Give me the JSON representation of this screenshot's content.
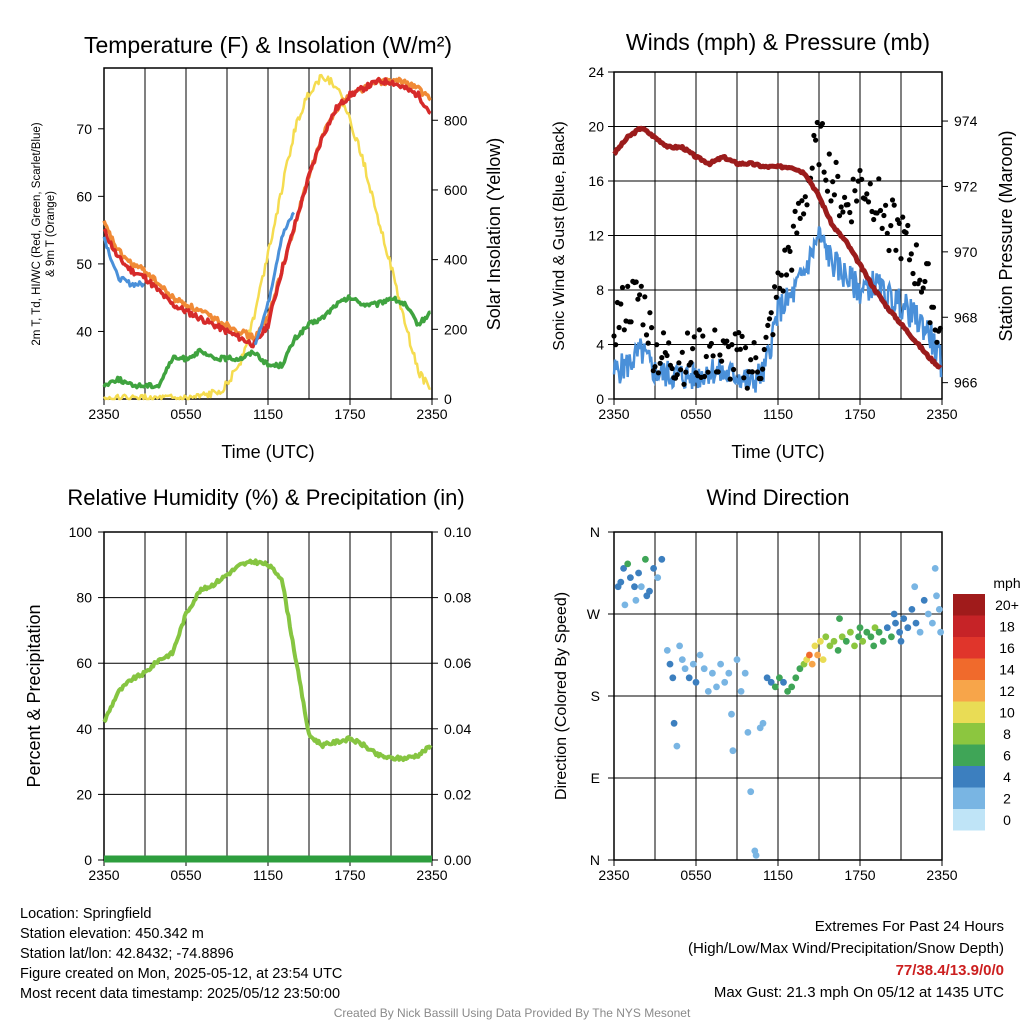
{
  "panels": {
    "temp": {
      "title": "Temperature (F) & Insolation (W/m²)",
      "ylabel_left": "2m T, Td, HI/WC (Red, Green, Scarlet/Blue) & 9m T (Orange)",
      "ylabel_right": "Solar Insolation (Yellow)",
      "xlabel": "Time (UTC)"
    },
    "wind": {
      "title": "Winds (mph) & Pressure (mb)",
      "ylabel_left": "Sonic Wind & Gust (Blue, Black)",
      "ylabel_right": "Station Pressure (Maroon)",
      "xlabel": "Time (UTC)"
    },
    "rh": {
      "title": "Relative Humidity (%) & Precipitation (in)",
      "ylabel_left": "Percent & Precipitation"
    },
    "dir": {
      "title": "Wind Direction",
      "ylabel_left": "Direction (Colored By Speed)"
    }
  },
  "x_tick_labels": [
    "2350",
    "0550",
    "1150",
    "1750",
    "2350"
  ],
  "dir_tick_labels": [
    "N",
    "W",
    "S",
    "E",
    "N"
  ],
  "legend": {
    "title": "mph",
    "labels": [
      "20+",
      "18",
      "16",
      "14",
      "12",
      "10",
      "8",
      "6",
      "4",
      "2",
      "0"
    ],
    "colors": [
      "#a01b1b",
      "#c62327",
      "#e0352b",
      "#f06a2c",
      "#f7a54a",
      "#e9dc55",
      "#8cc63f",
      "#3fa557",
      "#3c7fbf",
      "#79b5e3",
      "#bfe4f7"
    ]
  },
  "footer": {
    "location": "Location: Springfield",
    "elevation": "Station elevation: 450.342 m",
    "latlon": "Station lat/lon: 42.8432; -74.8896",
    "created": "Figure created on Mon, 2025-05-12, at 23:54 UTC",
    "recent": "Most recent data timestamp: 2025/05/12 23:50:00",
    "extremes_title": "Extremes For Past 24 Hours",
    "extremes_sub": "(High/Low/Max Wind/Precipitation/Snow Depth)",
    "extremes_values": "77/38.4/13.9/0/0",
    "max_gust": "Max Gust: 21.3 mph On 05/12 at 1435 UTC",
    "credit": "Created By Nick Bassill Using Data Provided By The NYS Mesonet"
  },
  "chart_data": [
    {
      "type": "line",
      "title": "Temperature (F) & Insolation (W/m²)",
      "xlabel": "Time (UTC)",
      "x_hours": [
        0,
        1,
        2,
        3,
        4,
        5,
        6,
        7,
        8,
        9,
        10,
        11,
        12,
        13,
        14,
        15,
        16,
        17,
        18,
        19,
        20,
        21,
        22,
        23,
        24
      ],
      "ylim_left": [
        30,
        79
      ],
      "yticks_left": [
        40,
        50,
        60,
        70
      ],
      "ylim_right": [
        0,
        950
      ],
      "yticks_right": [
        0,
        200,
        400,
        600,
        800
      ],
      "series": [
        {
          "axis": "left",
          "color": "#d62a2a",
          "values": [
            55,
            51,
            49,
            48,
            46,
            44,
            43,
            42,
            41,
            40,
            39,
            38,
            41,
            49,
            56,
            63,
            69,
            73,
            75,
            76,
            77,
            77,
            76,
            75,
            72
          ]
        },
        {
          "axis": "left",
          "color": "#f08a36",
          "values": [
            56,
            52,
            50,
            49,
            47,
            45,
            44,
            43,
            42,
            41,
            40,
            39,
            42,
            49,
            56,
            63,
            69,
            73,
            75,
            76,
            77,
            77,
            77,
            76,
            74
          ]
        },
        {
          "axis": "left",
          "color": "#3fa33f",
          "values": [
            32,
            33,
            32,
            32,
            32,
            36,
            36,
            37,
            36,
            36,
            36,
            37,
            35,
            35,
            39,
            41,
            42,
            44,
            45,
            44,
            44,
            45,
            44,
            41,
            43
          ]
        },
        {
          "axis": "left",
          "color": "#4a90d9",
          "values": [
            54,
            48,
            47,
            47,
            null,
            null,
            null,
            null,
            null,
            null,
            null,
            38,
            44,
            54,
            58,
            null,
            null,
            null,
            null,
            null,
            null,
            null,
            null,
            null,
            null
          ]
        },
        {
          "axis": "right",
          "color": "#f5dc50",
          "values": [
            0,
            0,
            0,
            0,
            0,
            0,
            0,
            5,
            15,
            40,
            110,
            240,
            420,
            600,
            780,
            880,
            930,
            900,
            800,
            680,
            530,
            380,
            220,
            80,
            20
          ]
        }
      ]
    },
    {
      "type": "line",
      "title": "Winds (mph) & Pressure (mb)",
      "xlabel": "Time (UTC)",
      "x_hours": [
        0,
        1,
        2,
        3,
        4,
        5,
        6,
        7,
        8,
        9,
        10,
        11,
        12,
        13,
        14,
        15,
        16,
        17,
        18,
        19,
        20,
        21,
        22,
        23,
        24
      ],
      "ylim_left": [
        0,
        24
      ],
      "yticks_left": [
        0,
        4,
        8,
        12,
        16,
        20,
        24
      ],
      "ylim_right": [
        965.5,
        975.5
      ],
      "yticks_right": [
        966,
        968,
        970,
        972,
        974
      ],
      "series": [
        {
          "axis": "right",
          "color": "#9b1c1c",
          "values": [
            973.0,
            973.5,
            973.8,
            973.5,
            973.2,
            973.2,
            972.9,
            972.7,
            972.9,
            972.7,
            972.7,
            972.6,
            972.6,
            972.6,
            972.4,
            971.7,
            970.8,
            970.3,
            969.6,
            968.9,
            968.3,
            967.8,
            967.3,
            966.8,
            966.4
          ]
        },
        {
          "axis": "left",
          "color": "#4a90d9",
          "values": [
            2.0,
            2.5,
            3.5,
            2.0,
            1.8,
            1.7,
            1.6,
            2.2,
            1.8,
            1.8,
            1.2,
            2.0,
            6.5,
            7.5,
            9.5,
            12.0,
            10.0,
            9.0,
            8.0,
            8.5,
            7.5,
            7.0,
            6.0,
            5.0,
            2.5
          ]
        },
        {
          "axis": "left",
          "color": "#000000",
          "markers": true,
          "values": [
            5.5,
            7.0,
            7.5,
            3.5,
            3.0,
            3.0,
            3.0,
            3.5,
            3.0,
            3.0,
            2.5,
            3.0,
            8.0,
            11.0,
            15.0,
            19.0,
            16.0,
            14.0,
            16.0,
            15.0,
            13.0,
            12.0,
            10.0,
            8.0,
            4.0
          ]
        }
      ]
    },
    {
      "type": "line",
      "title": "Relative Humidity (%) & Precipitation (in)",
      "x_hours": [
        0,
        1,
        2,
        3,
        4,
        5,
        6,
        7,
        8,
        9,
        10,
        11,
        12,
        13,
        14,
        15,
        16,
        17,
        18,
        19,
        20,
        21,
        22,
        23,
        24
      ],
      "ylim_left": [
        0,
        100
      ],
      "yticks_left": [
        0,
        20,
        40,
        60,
        80,
        100
      ],
      "ylim_right": [
        0,
        0.1
      ],
      "yticks_right": [
        "0.00",
        "0.02",
        "0.04",
        "0.06",
        "0.08",
        "0.10"
      ],
      "series": [
        {
          "axis": "left",
          "color": "#86c541",
          "values": [
            42,
            51,
            55,
            57,
            61,
            63,
            75,
            82,
            84,
            87,
            90,
            91,
            90,
            86,
            62,
            38,
            35,
            36,
            37,
            35,
            32,
            31,
            31,
            32,
            35
          ]
        },
        {
          "axis": "right",
          "color": "#2e9e3e",
          "values": [
            0,
            0,
            0,
            0,
            0,
            0,
            0,
            0,
            0,
            0,
            0,
            0,
            0,
            0,
            0,
            0,
            0,
            0,
            0,
            0,
            0,
            0,
            0,
            0,
            0
          ]
        }
      ]
    },
    {
      "type": "scatter",
      "title": "Wind Direction",
      "note": "direction in degrees; colour by speed (mph)",
      "ylim_deg": [
        0,
        360
      ],
      "points": [
        {
          "h": 0.3,
          "d": 300,
          "s": 4
        },
        {
          "h": 0.5,
          "d": 305,
          "s": 4
        },
        {
          "h": 0.7,
          "d": 320,
          "s": 3
        },
        {
          "h": 1.0,
          "d": 325,
          "s": 5
        },
        {
          "h": 1.2,
          "d": 310,
          "s": 4
        },
        {
          "h": 1.5,
          "d": 300,
          "s": 3
        },
        {
          "h": 1.8,
          "d": 315,
          "s": 4
        },
        {
          "h": 2.0,
          "d": 300,
          "s": 2
        },
        {
          "h": 2.3,
          "d": 330,
          "s": 6
        },
        {
          "h": 2.6,
          "d": 295,
          "s": 4
        },
        {
          "h": 2.9,
          "d": 320,
          "s": 3
        },
        {
          "h": 3.2,
          "d": 310,
          "s": 2
        },
        {
          "h": 3.5,
          "d": 330,
          "s": 4
        },
        {
          "h": 0.8,
          "d": 280,
          "s": 1
        },
        {
          "h": 1.6,
          "d": 285,
          "s": 2
        },
        {
          "h": 2.4,
          "d": 290,
          "s": 3
        },
        {
          "h": 3.9,
          "d": 230,
          "s": 2
        },
        {
          "h": 4.1,
          "d": 215,
          "s": 3
        },
        {
          "h": 4.3,
          "d": 200,
          "s": 4
        },
        {
          "h": 4.4,
          "d": 150,
          "s": 3
        },
        {
          "h": 4.6,
          "d": 125,
          "s": 2
        },
        {
          "h": 4.8,
          "d": 235,
          "s": 2
        },
        {
          "h": 5.0,
          "d": 220,
          "s": 2
        },
        {
          "h": 5.2,
          "d": 210,
          "s": 2
        },
        {
          "h": 5.5,
          "d": 200,
          "s": 3
        },
        {
          "h": 5.8,
          "d": 215,
          "s": 2
        },
        {
          "h": 6.0,
          "d": 195,
          "s": 3
        },
        {
          "h": 6.3,
          "d": 225,
          "s": 1
        },
        {
          "h": 6.6,
          "d": 210,
          "s": 2
        },
        {
          "h": 6.9,
          "d": 185,
          "s": 2
        },
        {
          "h": 7.2,
          "d": 205,
          "s": 2
        },
        {
          "h": 7.5,
          "d": 190,
          "s": 2
        },
        {
          "h": 7.8,
          "d": 215,
          "s": 2
        },
        {
          "h": 8.1,
          "d": 195,
          "s": 2
        },
        {
          "h": 8.4,
          "d": 205,
          "s": 1
        },
        {
          "h": 8.6,
          "d": 160,
          "s": 2
        },
        {
          "h": 8.7,
          "d": 120,
          "s": 1
        },
        {
          "h": 9.0,
          "d": 220,
          "s": 2
        },
        {
          "h": 9.3,
          "d": 185,
          "s": 1
        },
        {
          "h": 9.6,
          "d": 205,
          "s": 2
        },
        {
          "h": 9.8,
          "d": 140,
          "s": 1
        },
        {
          "h": 10.0,
          "d": 75,
          "s": 1
        },
        {
          "h": 10.3,
          "d": 10,
          "s": 1
        },
        {
          "h": 10.4,
          "d": 5,
          "s": 2
        },
        {
          "h": 10.7,
          "d": 145,
          "s": 1
        },
        {
          "h": 10.9,
          "d": 150,
          "s": 1
        },
        {
          "h": 11.2,
          "d": 200,
          "s": 4
        },
        {
          "h": 11.5,
          "d": 195,
          "s": 4
        },
        {
          "h": 11.8,
          "d": 190,
          "s": 5
        },
        {
          "h": 12.1,
          "d": 200,
          "s": 5
        },
        {
          "h": 12.4,
          "d": 195,
          "s": 4
        },
        {
          "h": 12.7,
          "d": 185,
          "s": 6
        },
        {
          "h": 13.0,
          "d": 190,
          "s": 6
        },
        {
          "h": 13.3,
          "d": 200,
          "s": 6
        },
        {
          "h": 13.6,
          "d": 210,
          "s": 6
        },
        {
          "h": 13.9,
          "d": 215,
          "s": 8
        },
        {
          "h": 14.1,
          "d": 220,
          "s": 9
        },
        {
          "h": 14.3,
          "d": 225,
          "s": 14
        },
        {
          "h": 14.5,
          "d": 215,
          "s": 11
        },
        {
          "h": 14.7,
          "d": 235,
          "s": 10
        },
        {
          "h": 14.9,
          "d": 225,
          "s": 12
        },
        {
          "h": 15.1,
          "d": 240,
          "s": 9
        },
        {
          "h": 15.3,
          "d": 220,
          "s": 10
        },
        {
          "h": 15.5,
          "d": 245,
          "s": 8
        },
        {
          "h": 15.8,
          "d": 235,
          "s": 7
        },
        {
          "h": 16.1,
          "d": 240,
          "s": 8
        },
        {
          "h": 16.4,
          "d": 230,
          "s": 6
        },
        {
          "h": 16.7,
          "d": 245,
          "s": 7
        },
        {
          "h": 17.0,
          "d": 240,
          "s": 6
        },
        {
          "h": 17.3,
          "d": 250,
          "s": 8
        },
        {
          "h": 17.6,
          "d": 235,
          "s": 7
        },
        {
          "h": 17.9,
          "d": 245,
          "s": 6
        },
        {
          "h": 18.2,
          "d": 240,
          "s": 7
        },
        {
          "h": 18.5,
          "d": 250,
          "s": 5
        },
        {
          "h": 18.8,
          "d": 245,
          "s": 6
        },
        {
          "h": 19.1,
          "d": 255,
          "s": 7
        },
        {
          "h": 19.4,
          "d": 250,
          "s": 5
        },
        {
          "h": 19.7,
          "d": 240,
          "s": 6
        },
        {
          "h": 20.0,
          "d": 255,
          "s": 4
        },
        {
          "h": 20.3,
          "d": 245,
          "s": 5
        },
        {
          "h": 20.6,
          "d": 260,
          "s": 4
        },
        {
          "h": 20.9,
          "d": 250,
          "s": 4
        },
        {
          "h": 21.2,
          "d": 265,
          "s": 3
        },
        {
          "h": 21.5,
          "d": 255,
          "s": 4
        },
        {
          "h": 21.8,
          "d": 275,
          "s": 3
        },
        {
          "h": 22.1,
          "d": 260,
          "s": 3
        },
        {
          "h": 22.4,
          "d": 250,
          "s": 2
        },
        {
          "h": 22.7,
          "d": 285,
          "s": 3
        },
        {
          "h": 23.0,
          "d": 270,
          "s": 2
        },
        {
          "h": 23.3,
          "d": 260,
          "s": 2
        },
        {
          "h": 23.6,
          "d": 290,
          "s": 1
        },
        {
          "h": 23.8,
          "d": 275,
          "s": 1
        },
        {
          "h": 23.9,
          "d": 250,
          "s": 2
        },
        {
          "h": 16.5,
          "d": 265,
          "s": 6
        },
        {
          "h": 18.0,
          "d": 255,
          "s": 5
        },
        {
          "h": 19.0,
          "d": 235,
          "s": 6
        },
        {
          "h": 20.5,
          "d": 270,
          "s": 4
        },
        {
          "h": 21.0,
          "d": 240,
          "s": 4
        },
        {
          "h": 22.0,
          "d": 300,
          "s": 2
        },
        {
          "h": 23.5,
          "d": 320,
          "s": 1
        }
      ]
    }
  ]
}
